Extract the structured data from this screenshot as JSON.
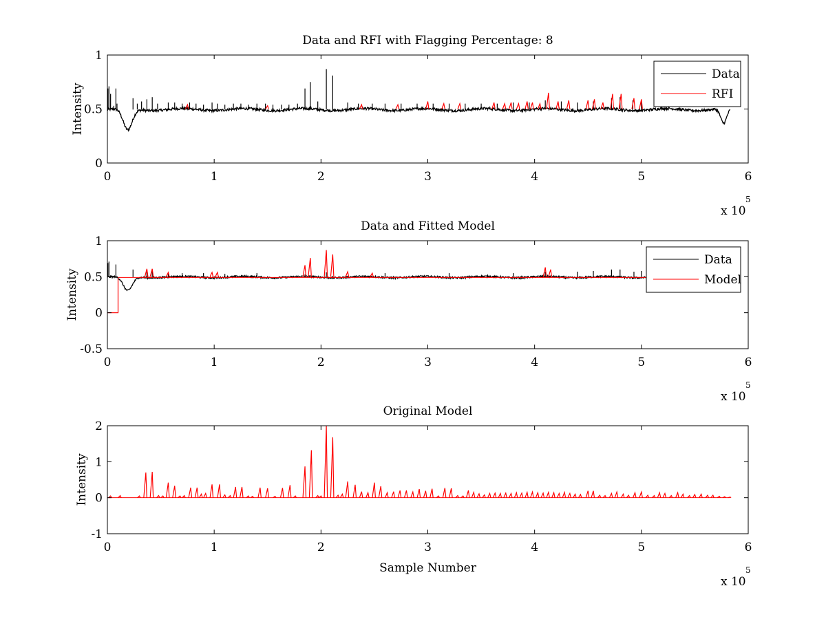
{
  "chart_data": [
    {
      "type": "line",
      "title": "Data and RFI with Flagging Percentage: 8",
      "xlabel": "",
      "ylabel": "Intensity",
      "xlim": [
        0,
        600000
      ],
      "ylim": [
        0,
        1
      ],
      "xticks": [
        "0",
        "1",
        "2",
        "3",
        "4",
        "5",
        "6"
      ],
      "yticks": [
        "0",
        "0.5",
        "1"
      ],
      "x_exponent": "x 10",
      "x_exponent_power": "5",
      "legend": "top-right",
      "series": [
        {
          "name": "Data",
          "color": "#000000",
          "baseline": 0.495,
          "noise": 0.012,
          "spikes": [
            [
              500,
              0.69
            ],
            [
              1500,
              0.71
            ],
            [
              3000,
              0.64
            ],
            [
              6000,
              0.53
            ],
            [
              8000,
              0.69
            ],
            [
              9000,
              0.55
            ],
            [
              24000,
              0.6
            ],
            [
              28000,
              0.55
            ],
            [
              32000,
              0.57
            ],
            [
              37000,
              0.59
            ],
            [
              42000,
              0.61
            ],
            [
              47000,
              0.55
            ],
            [
              57000,
              0.56
            ],
            [
              63000,
              0.56
            ],
            [
              70000,
              0.55
            ],
            [
              77000,
              0.56
            ],
            [
              83000,
              0.55
            ],
            [
              90000,
              0.54
            ],
            [
              98000,
              0.56
            ],
            [
              103000,
              0.55
            ],
            [
              110000,
              0.54
            ],
            [
              118000,
              0.55
            ],
            [
              125000,
              0.55
            ],
            [
              132000,
              0.54
            ],
            [
              140000,
              0.55
            ],
            [
              148000,
              0.55
            ],
            [
              155000,
              0.54
            ],
            [
              163000,
              0.54
            ],
            [
              170000,
              0.54
            ],
            [
              178000,
              0.55
            ],
            [
              185000,
              0.69
            ],
            [
              190000,
              0.75
            ],
            [
              197000,
              0.57
            ],
            [
              205000,
              0.87
            ],
            [
              211000,
              0.81
            ],
            [
              225000,
              0.56
            ],
            [
              235000,
              0.55
            ],
            [
              248000,
              0.55
            ],
            [
              260000,
              0.55
            ],
            [
              275000,
              0.55
            ],
            [
              290000,
              0.55
            ],
            [
              305000,
              0.55
            ],
            [
              320000,
              0.55
            ],
            [
              335000,
              0.55
            ],
            [
              350000,
              0.55
            ],
            [
              365000,
              0.55
            ],
            [
              380000,
              0.56
            ],
            [
              395000,
              0.56
            ],
            [
              410000,
              0.58
            ],
            [
              425000,
              0.57
            ],
            [
              440000,
              0.56
            ],
            [
              455000,
              0.57
            ],
            [
              472000,
              0.6
            ],
            [
              480000,
              0.61
            ],
            [
              492000,
              0.58
            ],
            [
              500000,
              0.58
            ]
          ],
          "dips": [
            [
              19000,
              0.3,
              6000
            ],
            [
              577000,
              0.36,
              4000
            ]
          ]
        },
        {
          "name": "RFI",
          "color": "#ff0000",
          "spikes": [
            [
              75000,
              0.54
            ],
            [
              150000,
              0.53
            ],
            [
              238000,
              0.54
            ],
            [
              272000,
              0.54
            ],
            [
              300000,
              0.57
            ],
            [
              315000,
              0.55
            ],
            [
              330000,
              0.55
            ],
            [
              362000,
              0.56
            ],
            [
              372000,
              0.55
            ],
            [
              378000,
              0.56
            ],
            [
              385000,
              0.55
            ],
            [
              393000,
              0.57
            ],
            [
              398000,
              0.56
            ],
            [
              405000,
              0.55
            ],
            [
              413000,
              0.65
            ],
            [
              422000,
              0.57
            ],
            [
              432000,
              0.58
            ],
            [
              450000,
              0.58
            ],
            [
              456000,
              0.59
            ],
            [
              464000,
              0.56
            ],
            [
              473000,
              0.64
            ],
            [
              481000,
              0.64
            ],
            [
              493000,
              0.6
            ],
            [
              500000,
              0.59
            ]
          ]
        }
      ]
    },
    {
      "type": "line",
      "title": "Data and Fitted Model",
      "xlabel": "",
      "ylabel": "Intensity",
      "xlim": [
        0,
        600000
      ],
      "ylim": [
        -0.5,
        1
      ],
      "xticks": [
        "0",
        "1",
        "2",
        "3",
        "4",
        "5",
        "6"
      ],
      "yticks": [
        "-0.5",
        "0",
        "0.5",
        "1"
      ],
      "x_exponent": "x 10",
      "x_exponent_power": "5",
      "legend": "top-right",
      "series": [
        {
          "name": "Data",
          "color": "#000000",
          "baseline": 0.495,
          "noise": 0.012,
          "spikes": [
            [
              500,
              0.69
            ],
            [
              1500,
              0.71
            ],
            [
              8000,
              0.67
            ],
            [
              24000,
              0.6
            ],
            [
              37000,
              0.57
            ],
            [
              42000,
              0.59
            ],
            [
              57000,
              0.55
            ],
            [
              70000,
              0.55
            ],
            [
              90000,
              0.55
            ],
            [
              110000,
              0.54
            ],
            [
              140000,
              0.55
            ],
            [
              185000,
              0.53
            ],
            [
              205000,
              0.56
            ],
            [
              260000,
              0.55
            ],
            [
              320000,
              0.55
            ],
            [
              380000,
              0.55
            ],
            [
              410000,
              0.57
            ],
            [
              440000,
              0.57
            ],
            [
              455000,
              0.58
            ],
            [
              472000,
              0.6
            ],
            [
              480000,
              0.6
            ],
            [
              493000,
              0.57
            ],
            [
              500000,
              0.58
            ]
          ],
          "dips": [
            [
              19000,
              0.3,
              6000
            ]
          ]
        },
        {
          "name": "Model",
          "color": "#ff0000",
          "spikes": [
            [
              37000,
              0.61
            ],
            [
              42000,
              0.61
            ],
            [
              57000,
              0.56
            ],
            [
              98000,
              0.56
            ],
            [
              103000,
              0.56
            ],
            [
              185000,
              0.66
            ],
            [
              190000,
              0.76
            ],
            [
              205000,
              0.87
            ],
            [
              211000,
              0.81
            ],
            [
              225000,
              0.57
            ],
            [
              248000,
              0.55
            ],
            [
              410000,
              0.63
            ],
            [
              415000,
              0.6
            ]
          ],
          "step": [
            [
              0,
              0
            ],
            [
              10000,
              0
            ],
            [
              10000,
              0.48
            ]
          ]
        }
      ]
    },
    {
      "type": "line",
      "title": "Original Model",
      "xlabel": "Sample Number",
      "ylabel": "Intensity",
      "xlim": [
        0,
        600000
      ],
      "ylim": [
        -1,
        2
      ],
      "xticks": [
        "0",
        "1",
        "2",
        "3",
        "4",
        "5",
        "6"
      ],
      "yticks": [
        "-1",
        "0",
        "1",
        "2"
      ],
      "x_exponent": "x 10",
      "x_exponent_power": "5",
      "series": [
        {
          "name": "",
          "color": "#ff0000",
          "spikes": [
            [
              3000,
              0.05
            ],
            [
              12000,
              0.06
            ],
            [
              30000,
              0.05
            ],
            [
              36000,
              0.7
            ],
            [
              42000,
              0.72
            ],
            [
              48000,
              0.06
            ],
            [
              52000,
              0.05
            ],
            [
              57000,
              0.42
            ],
            [
              63000,
              0.33
            ],
            [
              68000,
              0.05
            ],
            [
              72000,
              0.06
            ],
            [
              78000,
              0.28
            ],
            [
              84000,
              0.28
            ],
            [
              88000,
              0.1
            ],
            [
              92000,
              0.12
            ],
            [
              98000,
              0.37
            ],
            [
              105000,
              0.37
            ],
            [
              110000,
              0.08
            ],
            [
              115000,
              0.06
            ],
            [
              120000,
              0.3
            ],
            [
              126000,
              0.3
            ],
            [
              132000,
              0.05
            ],
            [
              136000,
              0.04
            ],
            [
              143000,
              0.28
            ],
            [
              150000,
              0.26
            ],
            [
              157000,
              0.04
            ],
            [
              164000,
              0.27
            ],
            [
              171000,
              0.35
            ],
            [
              176000,
              0.05
            ],
            [
              185000,
              0.87
            ],
            [
              191000,
              1.32
            ],
            [
              197000,
              0.06
            ],
            [
              200000,
              0.05
            ],
            [
              205000,
              2.0
            ],
            [
              211000,
              1.68
            ],
            [
              216000,
              0.07
            ],
            [
              220000,
              0.1
            ],
            [
              225000,
              0.45
            ],
            [
              232000,
              0.36
            ],
            [
              238000,
              0.17
            ],
            [
              244000,
              0.14
            ],
            [
              250000,
              0.42
            ],
            [
              256000,
              0.32
            ],
            [
              262000,
              0.14
            ],
            [
              268000,
              0.17
            ],
            [
              274000,
              0.2
            ],
            [
              280000,
              0.2
            ],
            [
              286000,
              0.16
            ],
            [
              292000,
              0.24
            ],
            [
              298000,
              0.19
            ],
            [
              304000,
              0.25
            ],
            [
              310000,
              0.05
            ],
            [
              316000,
              0.27
            ],
            [
              322000,
              0.26
            ],
            [
              328000,
              0.06
            ],
            [
              333000,
              0.05
            ],
            [
              338000,
              0.2
            ],
            [
              343000,
              0.15
            ],
            [
              348000,
              0.11
            ],
            [
              353000,
              0.08
            ],
            [
              358000,
              0.12
            ],
            [
              363000,
              0.13
            ],
            [
              368000,
              0.12
            ],
            [
              373000,
              0.13
            ],
            [
              378000,
              0.12
            ],
            [
              383000,
              0.14
            ],
            [
              388000,
              0.13
            ],
            [
              393000,
              0.15
            ],
            [
              398000,
              0.16
            ],
            [
              403000,
              0.14
            ],
            [
              408000,
              0.13
            ],
            [
              413000,
              0.15
            ],
            [
              418000,
              0.14
            ],
            [
              423000,
              0.12
            ],
            [
              428000,
              0.15
            ],
            [
              433000,
              0.12
            ],
            [
              438000,
              0.1
            ],
            [
              443000,
              0.09
            ],
            [
              450000,
              0.19
            ],
            [
              455000,
              0.19
            ],
            [
              461000,
              0.07
            ],
            [
              466000,
              0.06
            ],
            [
              472000,
              0.12
            ],
            [
              477000,
              0.16
            ],
            [
              483000,
              0.1
            ],
            [
              488000,
              0.07
            ],
            [
              494000,
              0.14
            ],
            [
              500000,
              0.16
            ],
            [
              506000,
              0.07
            ],
            [
              512000,
              0.06
            ],
            [
              517000,
              0.14
            ],
            [
              522000,
              0.12
            ],
            [
              528000,
              0.06
            ],
            [
              534000,
              0.14
            ],
            [
              539000,
              0.1
            ],
            [
              545000,
              0.06
            ],
            [
              550000,
              0.09
            ],
            [
              556000,
              0.1
            ],
            [
              562000,
              0.07
            ],
            [
              567000,
              0.07
            ],
            [
              573000,
              0.04
            ],
            [
              578000,
              0.03
            ],
            [
              583000,
              0.02
            ]
          ]
        }
      ]
    }
  ]
}
